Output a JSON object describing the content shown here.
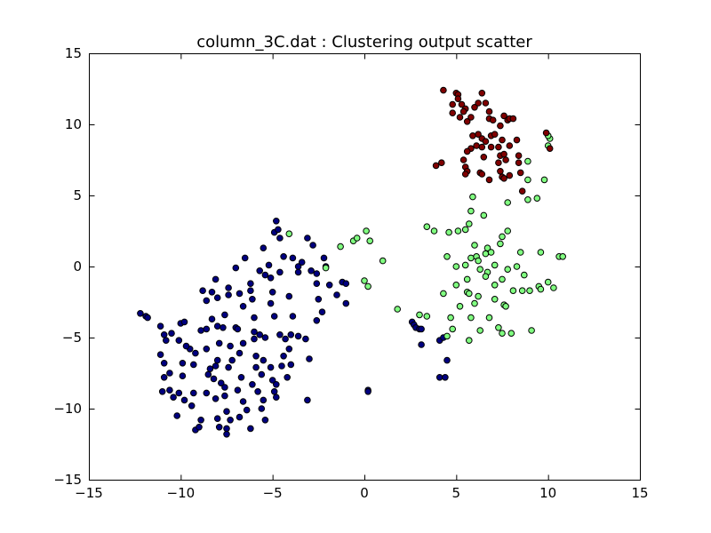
{
  "chart_data": {
    "type": "scatter",
    "title": "column_3C.dat : Clustering output scatter",
    "xlabel": "",
    "ylabel": "",
    "xlim": [
      -15,
      15
    ],
    "ylim": [
      -15,
      15
    ],
    "xticks": [
      -15,
      -10,
      -5,
      0,
      5,
      10,
      15
    ],
    "yticks": [
      -15,
      -10,
      -5,
      0,
      5,
      10,
      15
    ],
    "xtick_labels": [
      "−15",
      "−10",
      "−5",
      "0",
      "5",
      "10",
      "15"
    ],
    "ytick_labels": [
      "−15",
      "−10",
      "−5",
      "0",
      "5",
      "10",
      "15"
    ],
    "grid": false,
    "series": [
      {
        "color": "#000080",
        "points": [
          [
            -12.2,
            -3.3
          ],
          [
            -11.9,
            -3.5
          ],
          [
            -11.8,
            -3.6
          ],
          [
            -11.1,
            -4.2
          ],
          [
            -10.9,
            -4.8
          ],
          [
            -10.5,
            -4.7
          ],
          [
            -10.8,
            -5.2
          ],
          [
            -11.1,
            -6.2
          ],
          [
            -10.9,
            -6.8
          ],
          [
            -10.6,
            -7.5
          ],
          [
            -10.9,
            -7.8
          ],
          [
            -11.0,
            -8.8
          ],
          [
            -10.6,
            -8.7
          ],
          [
            -10.4,
            -9.2
          ],
          [
            -10.1,
            -8.9
          ],
          [
            -10.2,
            -10.5
          ],
          [
            -9.8,
            -9.4
          ],
          [
            -9.4,
            -9.8
          ],
          [
            -9.9,
            -7.7
          ],
          [
            -9.9,
            -6.8
          ],
          [
            -10.1,
            -5.2
          ],
          [
            -10.0,
            -4.0
          ],
          [
            -9.8,
            -3.9
          ],
          [
            -9.5,
            -5.8
          ],
          [
            -9.7,
            -5.6
          ],
          [
            -9.2,
            -6.1
          ],
          [
            -9.3,
            -6.9
          ],
          [
            -9.3,
            -8.9
          ],
          [
            -9.2,
            -11.5
          ],
          [
            -9.0,
            -11.3
          ],
          [
            -8.9,
            -10.8
          ],
          [
            -8.9,
            -4.5
          ],
          [
            -8.6,
            -4.4
          ],
          [
            -8.6,
            -5.8
          ],
          [
            -8.4,
            -7.2
          ],
          [
            -8.5,
            -7.6
          ],
          [
            -8.8,
            -1.7
          ],
          [
            -8.6,
            -2.4
          ],
          [
            -8.3,
            -1.8
          ],
          [
            -8.1,
            -0.9
          ],
          [
            -8.0,
            -2.2
          ],
          [
            -8.3,
            -3.7
          ],
          [
            -8.0,
            -4.2
          ],
          [
            -7.9,
            -5.4
          ],
          [
            -8.0,
            -6.6
          ],
          [
            -8.1,
            -7.0
          ],
          [
            -8.2,
            -7.9
          ],
          [
            -8.6,
            -8.9
          ],
          [
            -8.1,
            -9.3
          ],
          [
            -8.0,
            -10.7
          ],
          [
            -7.9,
            -11.3
          ],
          [
            -7.8,
            -8.2
          ],
          [
            -7.6,
            -8.5
          ],
          [
            -7.6,
            -9.1
          ],
          [
            -7.5,
            -10.2
          ],
          [
            -7.5,
            -11.4
          ],
          [
            -7.5,
            -11.8
          ],
          [
            -7.3,
            -10.8
          ],
          [
            -7.4,
            -1.5
          ],
          [
            -7.4,
            -2.0
          ],
          [
            -7.6,
            -3.4
          ],
          [
            -7.7,
            -4.3
          ],
          [
            -7.3,
            -5.6
          ],
          [
            -7.2,
            -6.6
          ],
          [
            -7.4,
            -7.1
          ],
          [
            -7.0,
            -4.3
          ],
          [
            -6.9,
            -4.4
          ],
          [
            -6.6,
            -5.4
          ],
          [
            -6.8,
            -6.1
          ],
          [
            -6.7,
            -7.8
          ],
          [
            -6.9,
            -8.7
          ],
          [
            -6.6,
            -9.5
          ],
          [
            -6.4,
            -10.1
          ],
          [
            -6.8,
            -10.6
          ],
          [
            -6.2,
            -11.4
          ],
          [
            -6.6,
            -2.8
          ],
          [
            -6.8,
            -1.9
          ],
          [
            -7.0,
            -0.1
          ],
          [
            -6.5,
            0.6
          ],
          [
            -6.2,
            -1.2
          ],
          [
            -6.2,
            -1.7
          ],
          [
            -6.1,
            -2.3
          ],
          [
            -6.0,
            -3.6
          ],
          [
            -6.0,
            -4.6
          ],
          [
            -6.0,
            -5.1
          ],
          [
            -5.7,
            -4.8
          ],
          [
            -5.9,
            -6.3
          ],
          [
            -5.9,
            -7.1
          ],
          [
            -5.6,
            -7.6
          ],
          [
            -6.1,
            -8.3
          ],
          [
            -5.8,
            -8.8
          ],
          [
            -5.5,
            -9.4
          ],
          [
            -5.6,
            -10.0
          ],
          [
            -5.4,
            -10.8
          ],
          [
            -5.7,
            -0.3
          ],
          [
            -5.4,
            -0.6
          ],
          [
            -5.5,
            1.3
          ],
          [
            -5.2,
            0.1
          ],
          [
            -5.1,
            -0.8
          ],
          [
            -5.0,
            -1.8
          ],
          [
            -5.1,
            -2.6
          ],
          [
            -4.9,
            -3.5
          ],
          [
            -5.4,
            -5.0
          ],
          [
            -5.5,
            -6.6
          ],
          [
            -5.1,
            -7.1
          ],
          [
            -5.0,
            -8.0
          ],
          [
            -4.8,
            -8.3
          ],
          [
            -4.9,
            -8.8
          ],
          [
            -4.8,
            -9.2
          ],
          [
            -4.9,
            2.4
          ],
          [
            -4.8,
            3.2
          ],
          [
            -4.7,
            2.6
          ],
          [
            -4.6,
            2.0
          ],
          [
            -4.4,
            0.7
          ],
          [
            -4.6,
            -0.4
          ],
          [
            -4.1,
            -2.1
          ],
          [
            -4.6,
            -4.8
          ],
          [
            -4.3,
            -5.1
          ],
          [
            -4.0,
            -4.8
          ],
          [
            -4.1,
            -5.8
          ],
          [
            -4.4,
            -6.3
          ],
          [
            -4.5,
            -7.0
          ],
          [
            -4.2,
            -7.8
          ],
          [
            -4.0,
            -6.9
          ],
          [
            -3.9,
            0.6
          ],
          [
            -3.6,
            0.0
          ],
          [
            -3.6,
            -0.4
          ],
          [
            -3.4,
            0.3
          ],
          [
            -3.9,
            -3.5
          ],
          [
            -3.6,
            -4.9
          ],
          [
            -3.2,
            -5.1
          ],
          [
            -3.1,
            2.0
          ],
          [
            -2.8,
            1.5
          ],
          [
            -2.9,
            -0.3
          ],
          [
            -2.6,
            -0.5
          ],
          [
            -2.6,
            -1.2
          ],
          [
            -2.5,
            -2.3
          ],
          [
            -2.6,
            -3.8
          ],
          [
            -2.3,
            -3.2
          ],
          [
            -3.0,
            -6.5
          ],
          [
            -3.1,
            -9.4
          ],
          [
            -2.2,
            0.6
          ],
          [
            -2.1,
            0.0
          ],
          [
            -1.9,
            -1.3
          ],
          [
            -1.5,
            -2.0
          ],
          [
            -1.2,
            -1.1
          ],
          [
            -1.0,
            -1.2
          ],
          [
            -1.0,
            -2.6
          ],
          [
            0.2,
            -8.7
          ],
          [
            0.2,
            -8.8
          ],
          [
            2.6,
            -3.9
          ],
          [
            2.7,
            -4.1
          ],
          [
            2.8,
            -4.3
          ],
          [
            3.0,
            -4.4
          ],
          [
            3.1,
            -4.4
          ],
          [
            3.1,
            -5.5
          ],
          [
            4.1,
            -5.2
          ],
          [
            4.3,
            -5.0
          ],
          [
            4.5,
            -6.6
          ],
          [
            4.1,
            -7.8
          ],
          [
            4.4,
            -7.8
          ]
        ]
      },
      {
        "color": "#80ff80",
        "points": [
          [
            -4.1,
            2.3
          ],
          [
            -2.1,
            -0.1
          ],
          [
            -1.3,
            1.4
          ],
          [
            -0.6,
            1.8
          ],
          [
            -0.4,
            2.0
          ],
          [
            0.1,
            2.5
          ],
          [
            0.3,
            1.8
          ],
          [
            1.0,
            0.4
          ],
          [
            0.0,
            -1.0
          ],
          [
            0.2,
            -1.4
          ],
          [
            1.8,
            -3.0
          ],
          [
            3.4,
            2.8
          ],
          [
            3.8,
            2.5
          ],
          [
            3.0,
            -3.4
          ],
          [
            3.4,
            -3.5
          ],
          [
            4.3,
            -1.9
          ],
          [
            4.5,
            0.7
          ],
          [
            4.6,
            2.4
          ],
          [
            4.7,
            -3.6
          ],
          [
            4.8,
            -4.4
          ],
          [
            4.5,
            -4.9
          ],
          [
            5.0,
            -1.3
          ],
          [
            5.0,
            0.0
          ],
          [
            5.1,
            2.5
          ],
          [
            5.2,
            -2.8
          ],
          [
            5.5,
            2.6
          ],
          [
            5.7,
            3.0
          ],
          [
            5.5,
            0.1
          ],
          [
            5.6,
            -0.9
          ],
          [
            5.8,
            0.6
          ],
          [
            5.6,
            -1.8
          ],
          [
            5.7,
            -1.9
          ],
          [
            5.8,
            -3.6
          ],
          [
            5.7,
            -5.2
          ],
          [
            5.9,
            4.9
          ],
          [
            5.8,
            3.9
          ],
          [
            6.0,
            1.5
          ],
          [
            6.1,
            0.7
          ],
          [
            6.2,
            0.4
          ],
          [
            6.3,
            -0.2
          ],
          [
            6.2,
            -2.1
          ],
          [
            6.0,
            -2.6
          ],
          [
            6.3,
            -4.5
          ],
          [
            6.5,
            3.6
          ],
          [
            6.6,
            0.9
          ],
          [
            6.7,
            1.3
          ],
          [
            6.9,
            1.0
          ],
          [
            6.7,
            -0.4
          ],
          [
            6.6,
            -0.7
          ],
          [
            6.8,
            -3.6
          ],
          [
            7.1,
            0.1
          ],
          [
            7.1,
            -1.3
          ],
          [
            7.1,
            -2.3
          ],
          [
            7.3,
            -4.3
          ],
          [
            7.5,
            2.1
          ],
          [
            7.4,
            1.6
          ],
          [
            7.5,
            -0.9
          ],
          [
            7.6,
            -2.7
          ],
          [
            7.7,
            -2.8
          ],
          [
            7.5,
            -4.7
          ],
          [
            7.8,
            -0.2
          ],
          [
            7.8,
            2.5
          ],
          [
            7.8,
            4.5
          ],
          [
            8.0,
            -4.7
          ],
          [
            8.1,
            -1.7
          ],
          [
            8.3,
            0.0
          ],
          [
            8.5,
            1.0
          ],
          [
            8.7,
            -0.6
          ],
          [
            8.6,
            -1.7
          ],
          [
            8.9,
            4.7
          ],
          [
            8.9,
            6.1
          ],
          [
            8.9,
            7.4
          ],
          [
            9.0,
            -1.7
          ],
          [
            9.1,
            -4.5
          ],
          [
            9.4,
            4.8
          ],
          [
            9.6,
            1.0
          ],
          [
            9.5,
            -1.4
          ],
          [
            9.6,
            -1.6
          ],
          [
            9.8,
            6.1
          ],
          [
            10.0,
            -1.1
          ],
          [
            10.1,
            9.0
          ],
          [
            10.0,
            9.2
          ],
          [
            10.3,
            -1.5
          ],
          [
            10.6,
            0.7
          ],
          [
            10.8,
            0.7
          ],
          [
            10.0,
            8.5
          ]
        ]
      },
      {
        "color": "#800000",
        "points": [
          [
            4.3,
            12.4
          ],
          [
            4.8,
            11.4
          ],
          [
            5.0,
            12.2
          ],
          [
            5.1,
            12.1
          ],
          [
            5.1,
            11.8
          ],
          [
            5.3,
            11.4
          ],
          [
            5.5,
            11.1
          ],
          [
            5.2,
            10.5
          ],
          [
            5.4,
            10.9
          ],
          [
            4.8,
            10.8
          ],
          [
            5.6,
            10.2
          ],
          [
            5.8,
            10.5
          ],
          [
            6.0,
            11.2
          ],
          [
            6.2,
            11.5
          ],
          [
            6.4,
            12.2
          ],
          [
            6.6,
            11.5
          ],
          [
            6.8,
            10.9
          ],
          [
            6.8,
            10.4
          ],
          [
            7.0,
            10.3
          ],
          [
            7.4,
            9.9
          ],
          [
            7.6,
            10.6
          ],
          [
            7.8,
            10.3
          ],
          [
            7.9,
            10.4
          ],
          [
            8.1,
            10.4
          ],
          [
            5.9,
            9.2
          ],
          [
            6.2,
            9.3
          ],
          [
            6.4,
            9.0
          ],
          [
            6.6,
            8.8
          ],
          [
            6.9,
            9.2
          ],
          [
            7.1,
            9.3
          ],
          [
            6.9,
            8.4
          ],
          [
            7.3,
            8.4
          ],
          [
            7.5,
            8.9
          ],
          [
            7.9,
            8.5
          ],
          [
            8.3,
            8.9
          ],
          [
            8.4,
            7.8
          ],
          [
            8.4,
            7.3
          ],
          [
            9.9,
            9.4
          ],
          [
            10.1,
            8.3
          ],
          [
            6.1,
            8.5
          ],
          [
            5.8,
            8.3
          ],
          [
            5.6,
            8.1
          ],
          [
            6.4,
            8.4
          ],
          [
            6.5,
            7.7
          ],
          [
            7.4,
            7.8
          ],
          [
            7.6,
            7.9
          ],
          [
            7.7,
            7.5
          ],
          [
            7.3,
            7.3
          ],
          [
            3.9,
            7.1
          ],
          [
            4.2,
            7.3
          ],
          [
            5.4,
            7.5
          ],
          [
            5.5,
            7.0
          ],
          [
            5.6,
            6.7
          ],
          [
            6.3,
            6.6
          ],
          [
            6.4,
            6.5
          ],
          [
            6.8,
            6.1
          ],
          [
            7.4,
            6.7
          ],
          [
            7.5,
            6.3
          ],
          [
            7.9,
            6.4
          ],
          [
            7.6,
            6.2
          ],
          [
            8.5,
            6.6
          ],
          [
            8.6,
            5.3
          ],
          [
            5.5,
            6.5
          ]
        ]
      }
    ]
  }
}
